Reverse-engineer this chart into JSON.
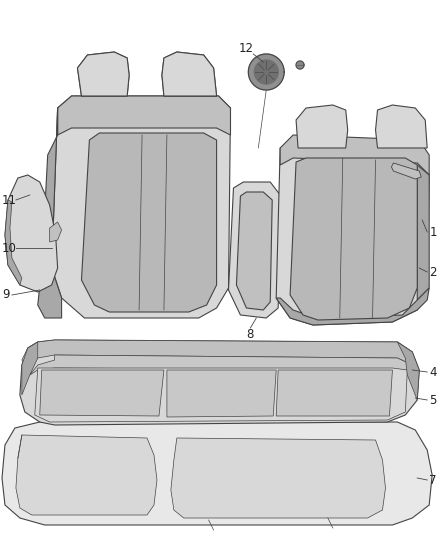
{
  "background_color": "#ffffff",
  "fig_width": 4.38,
  "fig_height": 5.33,
  "dpi": 100,
  "line_color": "#444444",
  "fill_light": "#d8d8d8",
  "fill_mid": "#c0c0c0",
  "fill_dark": "#a8a8a8",
  "stroke_color": "#444444",
  "label_color": "#222222",
  "font_size": 8.5
}
